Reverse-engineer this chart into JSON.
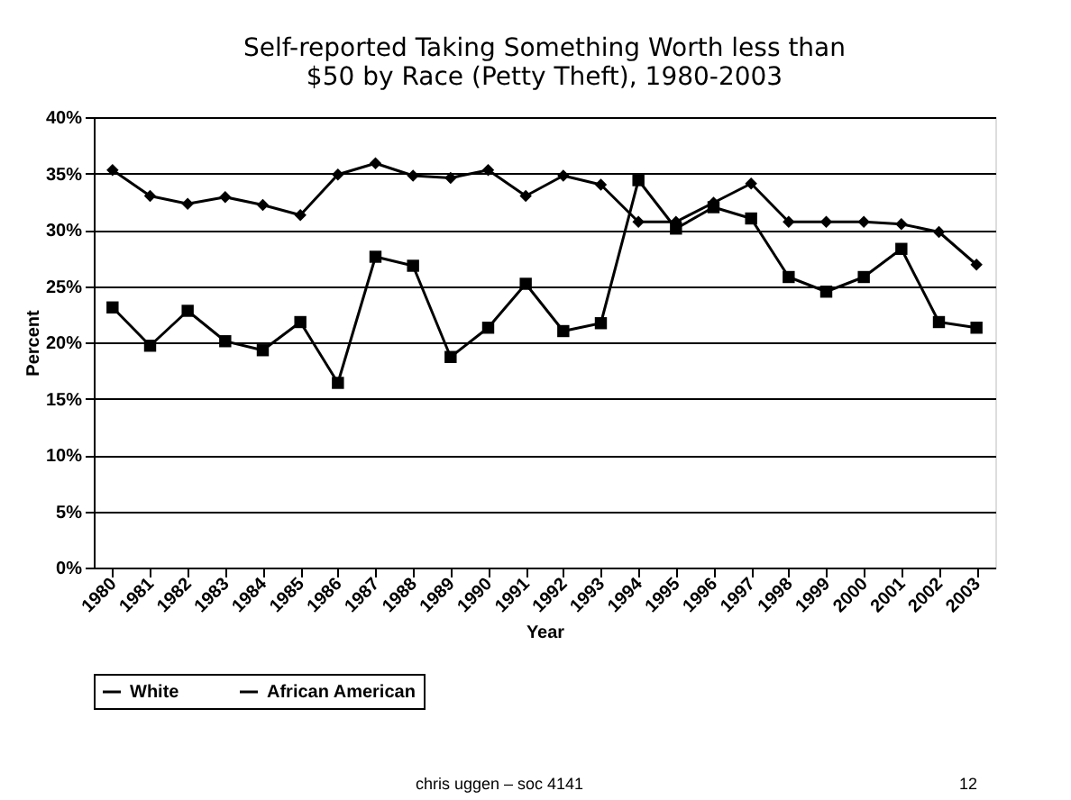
{
  "chart_data": {
    "type": "line",
    "title": [
      "Self-reported Taking Something Worth less than",
      "$50 by Race (Petty Theft), 1980-2003"
    ],
    "xlabel": "Year",
    "ylabel": "Percent",
    "categories": [
      "1980",
      "1981",
      "1982",
      "1983",
      "1984",
      "1985",
      "1986",
      "1987",
      "1988",
      "1989",
      "1990",
      "1991",
      "1992",
      "1993",
      "1994",
      "1995",
      "1996",
      "1997",
      "1998",
      "1999",
      "2000",
      "2001",
      "2002",
      "2003"
    ],
    "series": [
      {
        "name": "White",
        "color": "#000000",
        "marker": "diamond",
        "values": [
          35.3,
          33,
          32.3,
          32.9,
          32.2,
          31.3,
          34.9,
          35.9,
          34.8,
          34.6,
          35.3,
          33,
          34.8,
          34,
          30.7,
          30.7,
          32.4,
          34.1,
          30.7,
          30.7,
          30.7,
          30.5,
          29.8,
          26.9
        ]
      },
      {
        "name": "African American",
        "color": "#000000",
        "marker": "square",
        "values": [
          23.1,
          19.7,
          22.8,
          20.1,
          19.3,
          21.8,
          16.4,
          27.6,
          26.8,
          18.7,
          21.3,
          25.2,
          21,
          21.7,
          34.4,
          30.1,
          32,
          31,
          25.8,
          24.5,
          25.8,
          28.3,
          21.8,
          21.3
        ]
      }
    ],
    "ylim": [
      0,
      40
    ],
    "yticks": [
      {
        "value": 0,
        "label": "0%"
      },
      {
        "value": 5,
        "label": "5%"
      },
      {
        "value": 10,
        "label": "10%"
      },
      {
        "value": 15,
        "label": "15%"
      },
      {
        "value": 20,
        "label": "20%"
      },
      {
        "value": 25,
        "label": "25%"
      },
      {
        "value": 30,
        "label": "30%"
      },
      {
        "value": 35,
        "label": "35%"
      },
      {
        "value": 40,
        "label": "40%"
      }
    ],
    "grid": "y",
    "legend": "bottom",
    "line_style": "solid",
    "annotations": [
      "chris uggen – soc 4141",
      "12"
    ]
  }
}
